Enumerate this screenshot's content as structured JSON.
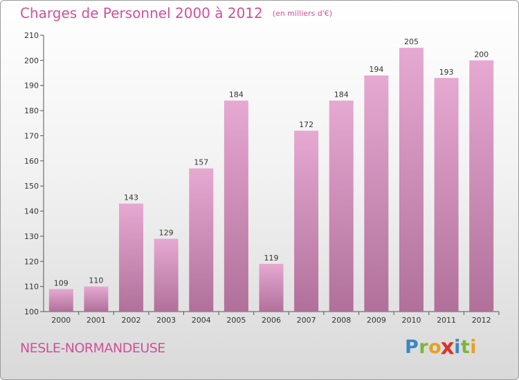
{
  "title": "Charges de Personnel 2000 à 2012",
  "subtitle": "(en milliers d'€)",
  "commune": "NESLE-NORMANDEUSE",
  "brand": {
    "letters": [
      {
        "char": "P",
        "color": "#3a86c8"
      },
      {
        "char": "r",
        "color": "#7bb63a"
      },
      {
        "char": "o",
        "color": "#e8a020"
      },
      {
        "char": "x",
        "color": "#d8342c"
      },
      {
        "char": "i",
        "color": "#3a86c8"
      },
      {
        "char": "t",
        "color": "#7bb63a"
      },
      {
        "char": "i",
        "color": "#e8a020"
      }
    ]
  },
  "colors": {
    "bar_light": "#e6a9d2",
    "bar_dark": "#b0709a",
    "accent": "#d0509a"
  },
  "chart_data": {
    "type": "bar",
    "categories": [
      "2000",
      "2001",
      "2002",
      "2003",
      "2004",
      "2005",
      "2006",
      "2007",
      "2008",
      "2009",
      "2010",
      "2011",
      "2012"
    ],
    "values": [
      109,
      110,
      143,
      129,
      157,
      184,
      119,
      172,
      184,
      194,
      205,
      193,
      200
    ],
    "title": "Charges de Personnel 2000 à 2012",
    "subtitle": "(en milliers d'€)",
    "ylim": [
      100,
      210
    ],
    "yticks": [
      100,
      110,
      120,
      130,
      140,
      150,
      160,
      170,
      180,
      190,
      200,
      210
    ],
    "grid": false,
    "legend": "none"
  }
}
